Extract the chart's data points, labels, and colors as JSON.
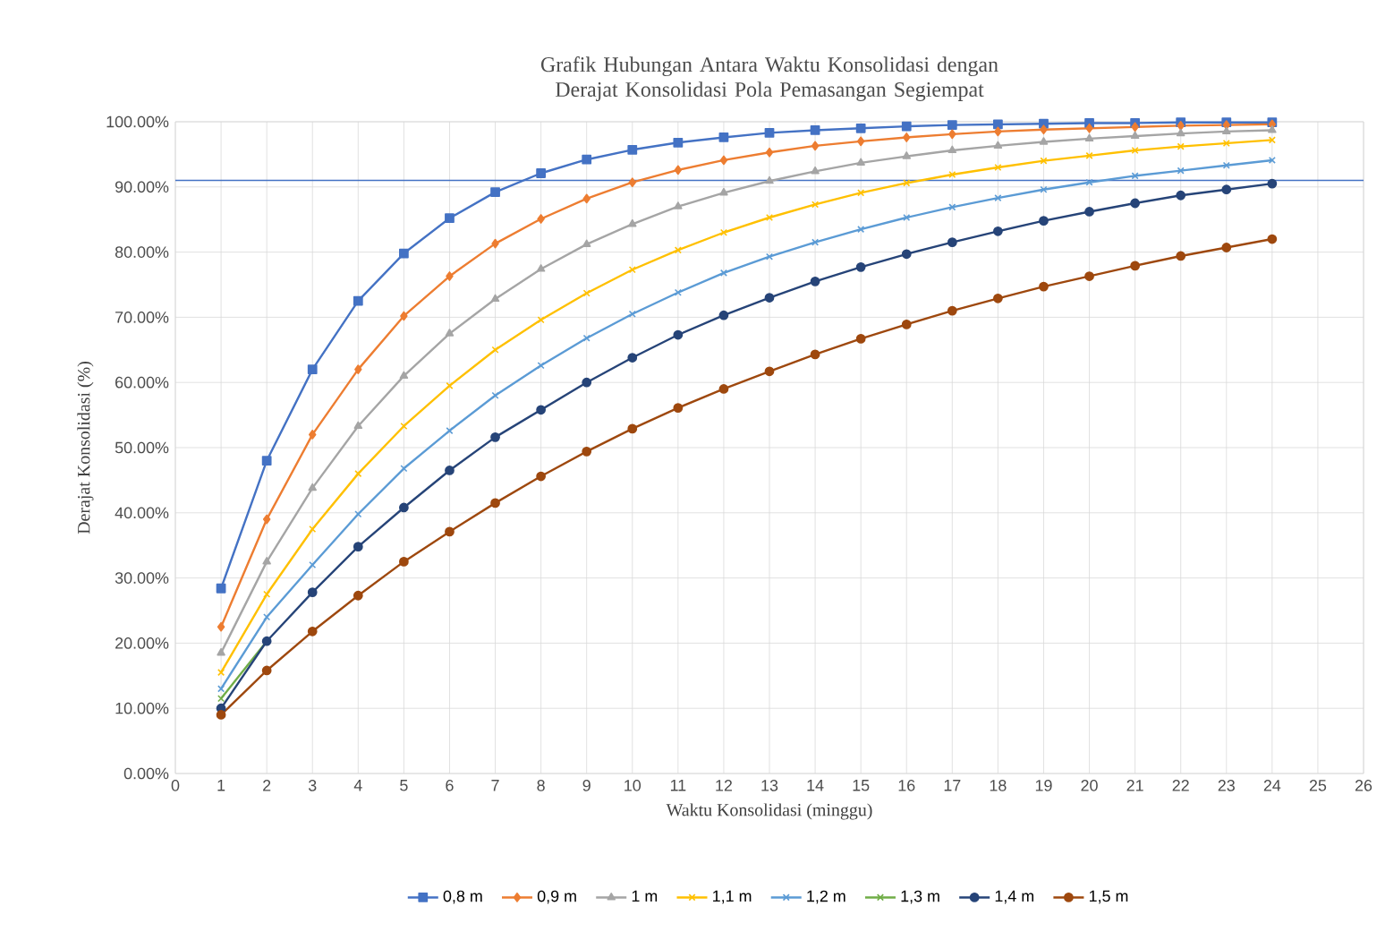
{
  "chart_data": {
    "type": "line",
    "title": "Grafik Hubungan Antara Waktu Konsolidasi  dengan Derajat Konsolidasi Pola Pemasangan Segiempat",
    "xlabel": "Waktu Konsolidasi (minggu)",
    "ylabel": "Derajat Konsolidasi (%)",
    "x": [
      1,
      2,
      3,
      4,
      5,
      6,
      7,
      8,
      9,
      10,
      11,
      12,
      13,
      14,
      15,
      16,
      17,
      18,
      19,
      20,
      21,
      22,
      23,
      24
    ],
    "series": [
      {
        "name": "0,8 m",
        "color": "#4472c4",
        "marker": "square",
        "values": [
          28.4,
          48,
          62,
          72.5,
          79.8,
          85.2,
          89.2,
          92.1,
          94.2,
          95.7,
          96.8,
          97.6,
          98.3,
          98.7,
          99.0,
          99.3,
          99.5,
          99.6,
          99.7,
          99.8,
          99.8,
          99.9,
          99.9,
          99.9
        ]
      },
      {
        "name": "0,9 m",
        "color": "#ed7d31",
        "marker": "diamond",
        "values": [
          22.5,
          39,
          52,
          62,
          70.2,
          76.3,
          81.3,
          85.1,
          88.2,
          90.7,
          92.6,
          94.1,
          95.3,
          96.3,
          97,
          97.6,
          98.1,
          98.5,
          98.8,
          99.0,
          99.2,
          99.4,
          99.5,
          99.6
        ]
      },
      {
        "name": "1 m",
        "color": "#a5a5a5",
        "marker": "triangle",
        "values": [
          18.5,
          32.5,
          43.8,
          53.3,
          61,
          67.5,
          72.8,
          77.4,
          81.2,
          84.3,
          87,
          89.1,
          90.9,
          92.4,
          93.7,
          94.7,
          95.6,
          96.3,
          96.9,
          97.4,
          97.8,
          98.2,
          98.5,
          98.7
        ]
      },
      {
        "name": "1,1 m",
        "color": "#ffc000",
        "marker": "cross",
        "values": [
          15.5,
          27.5,
          37.5,
          46,
          53.3,
          59.5,
          65,
          69.6,
          73.7,
          77.3,
          80.3,
          83,
          85.3,
          87.3,
          89.1,
          90.6,
          91.9,
          93,
          94,
          94.8,
          95.6,
          96.2,
          96.7,
          97.2
        ]
      },
      {
        "name": "1,2 m",
        "color": "#5b9bd5",
        "marker": "cross",
        "values": [
          13,
          24,
          32,
          39.8,
          46.8,
          52.6,
          58,
          62.6,
          66.8,
          70.5,
          73.8,
          76.8,
          79.3,
          81.5,
          83.5,
          85.3,
          86.9,
          88.3,
          89.6,
          90.7,
          91.7,
          92.5,
          93.3,
          94.1
        ]
      },
      {
        "name": "1,3 m",
        "color": "#70ad47",
        "marker": "cross",
        "values": [
          11.5,
          20.3,
          null,
          null,
          null,
          null,
          null,
          null,
          null,
          null,
          null,
          null,
          null,
          null,
          null,
          null,
          null,
          null,
          null,
          null,
          null,
          null,
          null,
          null
        ]
      },
      {
        "name": "1,4 m",
        "color": "#264478",
        "marker": "circle",
        "values": [
          10,
          20.3,
          27.8,
          34.8,
          40.8,
          46.5,
          51.6,
          55.8,
          60,
          63.8,
          67.3,
          70.3,
          73,
          75.5,
          77.7,
          79.7,
          81.5,
          83.2,
          84.8,
          86.2,
          87.5,
          88.7,
          89.6,
          90.5
        ]
      },
      {
        "name": "1,5 m",
        "color": "#9e480e",
        "marker": "circle",
        "values": [
          9,
          15.8,
          21.8,
          27.3,
          32.5,
          37.1,
          41.5,
          45.6,
          49.4,
          52.9,
          56.1,
          59,
          61.7,
          64.3,
          66.7,
          68.9,
          71,
          72.9,
          74.7,
          76.3,
          77.9,
          79.4,
          80.7,
          82
        ]
      }
    ],
    "xlim": [
      0,
      26
    ],
    "xticks": [
      0,
      1,
      2,
      3,
      4,
      5,
      6,
      7,
      8,
      9,
      10,
      11,
      12,
      13,
      14,
      15,
      16,
      17,
      18,
      19,
      20,
      21,
      22,
      23,
      24,
      25,
      26
    ],
    "ylim": [
      0,
      100
    ],
    "yticks": [
      {
        "value": 0,
        "label": "0.00%"
      },
      {
        "value": 10,
        "label": "10.00%"
      },
      {
        "value": 20,
        "label": "20.00%"
      },
      {
        "value": 30,
        "label": "30.00%"
      },
      {
        "value": 40,
        "label": "40.00%"
      },
      {
        "value": 50,
        "label": "50.00%"
      },
      {
        "value": 60,
        "label": "60.00%"
      },
      {
        "value": 70,
        "label": "70.00%"
      },
      {
        "value": 80,
        "label": "80.00%"
      },
      {
        "value": 90,
        "label": "90.00%"
      },
      {
        "value": 100,
        "label": "100.00%"
      }
    ],
    "ref_lines": [
      {
        "axis": "y",
        "value": 91,
        "color": "#4472c4"
      }
    ],
    "grid": true,
    "legend": "bottom",
    "line_style": "solid"
  }
}
